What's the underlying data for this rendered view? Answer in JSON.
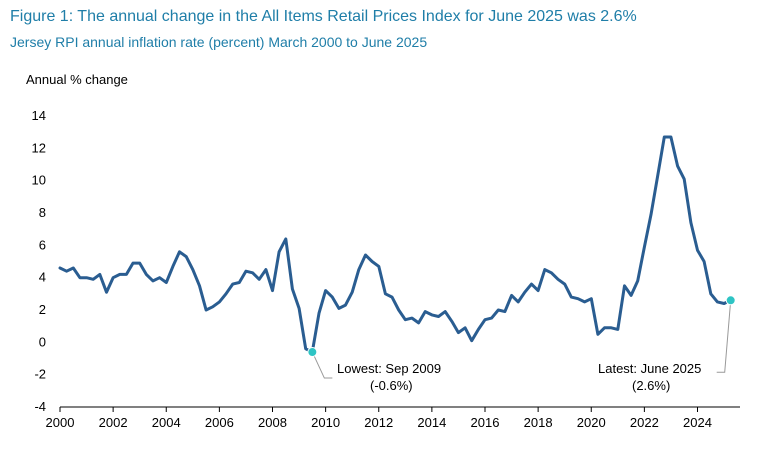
{
  "header": {
    "title": "Figure 1: The annual change in the All Items Retail Prices Index for June 2025 was 2.6%",
    "subtitle": "Jersey RPI annual inflation rate (percent) March 2000 to June 2025"
  },
  "chart_data": {
    "type": "line",
    "ylabel": "Annual % change",
    "ylim": [
      -4,
      14
    ],
    "yticks": [
      -4,
      -2,
      0,
      2,
      4,
      6,
      8,
      10,
      12,
      14
    ],
    "xlim": [
      2000,
      2025.6
    ],
    "xticks": [
      2000,
      2002,
      2004,
      2006,
      2008,
      2010,
      2012,
      2014,
      2016,
      2018,
      2020,
      2022,
      2024
    ],
    "grid": false,
    "series_color": "#2a5d91",
    "marker_color": "#2ec4c4",
    "x": [
      2000.0,
      2000.25,
      2000.5,
      2000.75,
      2001.0,
      2001.25,
      2001.5,
      2001.75,
      2002.0,
      2002.25,
      2002.5,
      2002.75,
      2003.0,
      2003.25,
      2003.5,
      2003.75,
      2004.0,
      2004.25,
      2004.5,
      2004.75,
      2005.0,
      2005.25,
      2005.5,
      2005.75,
      2006.0,
      2006.25,
      2006.5,
      2006.75,
      2007.0,
      2007.25,
      2007.5,
      2007.75,
      2008.0,
      2008.25,
      2008.5,
      2008.75,
      2009.0,
      2009.25,
      2009.5,
      2009.75,
      2010.0,
      2010.25,
      2010.5,
      2010.75,
      2011.0,
      2011.25,
      2011.5,
      2011.75,
      2012.0,
      2012.25,
      2012.5,
      2012.75,
      2013.0,
      2013.25,
      2013.5,
      2013.75,
      2014.0,
      2014.25,
      2014.5,
      2014.75,
      2015.0,
      2015.25,
      2015.5,
      2015.75,
      2016.0,
      2016.25,
      2016.5,
      2016.75,
      2017.0,
      2017.25,
      2017.5,
      2017.75,
      2018.0,
      2018.25,
      2018.5,
      2018.75,
      2019.0,
      2019.25,
      2019.5,
      2019.75,
      2020.0,
      2020.25,
      2020.5,
      2020.75,
      2021.0,
      2021.25,
      2021.5,
      2021.75,
      2022.0,
      2022.25,
      2022.5,
      2022.75,
      2023.0,
      2023.25,
      2023.5,
      2023.75,
      2024.0,
      2024.25,
      2024.5,
      2024.75,
      2025.0,
      2025.25
    ],
    "values": [
      4.6,
      4.4,
      4.6,
      4.0,
      4.0,
      3.9,
      4.2,
      3.1,
      4.0,
      4.2,
      4.2,
      4.9,
      4.9,
      4.2,
      3.8,
      4.0,
      3.7,
      4.7,
      5.6,
      5.3,
      4.5,
      3.5,
      2.0,
      2.2,
      2.5,
      3.0,
      3.6,
      3.7,
      4.4,
      4.3,
      3.9,
      4.5,
      3.2,
      5.6,
      6.4,
      3.3,
      2.1,
      -0.4,
      -0.6,
      1.8,
      3.2,
      2.8,
      2.1,
      2.3,
      3.1,
      4.5,
      5.4,
      5.0,
      4.7,
      3.0,
      2.8,
      2.0,
      1.4,
      1.5,
      1.2,
      1.9,
      1.7,
      1.6,
      1.9,
      1.3,
      0.6,
      0.9,
      0.1,
      0.8,
      1.4,
      1.5,
      2.0,
      1.9,
      2.9,
      2.5,
      3.1,
      3.6,
      3.2,
      4.5,
      4.3,
      3.9,
      3.6,
      2.8,
      2.7,
      2.5,
      2.7,
      0.5,
      0.9,
      0.9,
      0.8,
      3.5,
      2.9,
      3.8,
      5.9,
      7.9,
      10.3,
      12.7,
      12.7,
      10.9,
      10.1,
      7.4,
      5.7,
      5.0,
      3.0,
      2.5,
      2.4,
      2.6
    ],
    "annotations": [
      {
        "name": "lowest",
        "text_line1": "Lowest: Sep 2009",
        "text_line2": "(-0.6%)",
        "x": 2009.5,
        "y": -0.6
      },
      {
        "name": "latest",
        "text_line1": "Latest: June 2025",
        "text_line2": "(2.6%)",
        "x": 2025.25,
        "y": 2.6
      }
    ]
  }
}
